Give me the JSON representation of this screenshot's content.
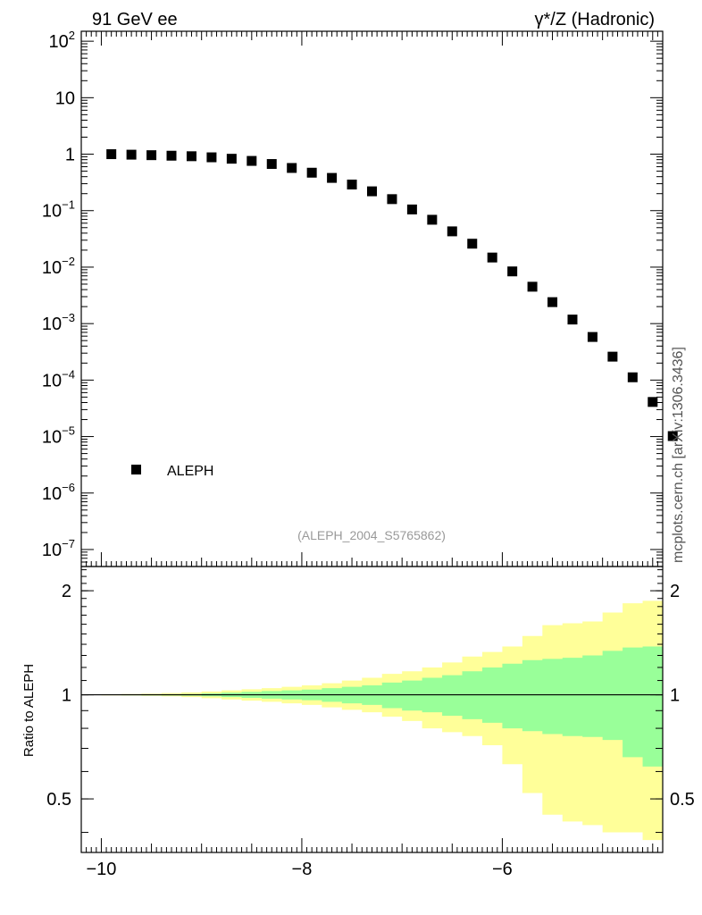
{
  "header": {
    "left_title": "91 GeV ee",
    "right_title": "γ*/Z (Hadronic)",
    "side_label": "mcplots.cern.ch [arXiv:1306.3436]",
    "analysis_id": "(ALEPH_2004_S5765862)"
  },
  "colors": {
    "data_marker": "#000000",
    "band_inner": "#99ff99",
    "band_outer": "#ffff99"
  },
  "chart_data": [
    {
      "type": "scatter",
      "panel": "main",
      "yscale": "log",
      "xlim": [
        -10.2,
        -4.4
      ],
      "ylim": [
        5e-08,
        150
      ],
      "y_ticks": [
        {
          "value": 100,
          "base": "10",
          "exp": "2"
        },
        {
          "value": 10,
          "base": "10",
          "exp": ""
        },
        {
          "value": 1,
          "base": "1",
          "exp": ""
        },
        {
          "value": 0.1,
          "base": "10",
          "exp": "−1"
        },
        {
          "value": 0.01,
          "base": "10",
          "exp": "−2"
        },
        {
          "value": 0.001,
          "base": "10",
          "exp": "−3"
        },
        {
          "value": 0.0001,
          "base": "10",
          "exp": "−4"
        },
        {
          "value": 1e-05,
          "base": "10",
          "exp": "−5"
        },
        {
          "value": 1e-06,
          "base": "10",
          "exp": "−6"
        },
        {
          "value": 1e-07,
          "base": "10",
          "exp": "−7"
        }
      ],
      "legend": {
        "label": "ALEPH",
        "position": "bottom-left"
      },
      "series": [
        {
          "name": "ALEPH",
          "x": [
            -9.9,
            -9.7,
            -9.5,
            -9.3,
            -9.1,
            -8.9,
            -8.7,
            -8.5,
            -8.3,
            -8.1,
            -7.9,
            -7.7,
            -7.5,
            -7.3,
            -7.1,
            -6.9,
            -6.7,
            -6.5,
            -6.3,
            -6.1,
            -5.9,
            -5.7,
            -5.5,
            -5.3,
            -5.1,
            -4.9,
            -4.7,
            -4.5,
            -4.3
          ],
          "y": [
            1.0,
            0.98,
            0.96,
            0.94,
            0.92,
            0.88,
            0.83,
            0.76,
            0.67,
            0.57,
            0.47,
            0.38,
            0.29,
            0.22,
            0.16,
            0.105,
            0.069,
            0.043,
            0.026,
            0.0148,
            0.0084,
            0.0045,
            0.0024,
            0.00118,
            0.00058,
            0.00026,
            0.000112,
            4.1e-05,
            1.02e-05
          ]
        }
      ]
    },
    {
      "type": "area",
      "panel": "ratio",
      "ylabel": "Ratio to ALEPH",
      "yscale": "log",
      "xlim": [
        -10.2,
        -4.4
      ],
      "ylim": [
        0.35,
        2.35
      ],
      "x_ticks": [
        -10,
        -8,
        -6
      ],
      "x_tick_labels": [
        "−10",
        "−8",
        "−6"
      ],
      "y_ticks": [
        0.5,
        1,
        2
      ],
      "y_tick_labels": [
        "0.5",
        "1",
        "2"
      ],
      "reference_line": 1,
      "bin_edges": [
        -10,
        -9.8,
        -9.6,
        -9.4,
        -9.2,
        -9.0,
        -8.8,
        -8.6,
        -8.4,
        -8.2,
        -8.0,
        -7.8,
        -7.6,
        -7.4,
        -7.2,
        -7.0,
        -6.8,
        -6.6,
        -6.4,
        -6.2,
        -6.0,
        -5.8,
        -5.6,
        -5.4,
        -5.2,
        -5.0,
        -4.8,
        -4.6,
        -4.4,
        -4.2
      ],
      "band_inner": {
        "lower": [
          0.998,
          0.997,
          0.996,
          0.995,
          0.994,
          0.99,
          0.985,
          0.98,
          0.975,
          0.97,
          0.965,
          0.955,
          0.945,
          0.935,
          0.915,
          0.9,
          0.89,
          0.87,
          0.85,
          0.83,
          0.8,
          0.785,
          0.77,
          0.76,
          0.755,
          0.74,
          0.66,
          0.62,
          0.35
        ],
        "upper": [
          1.002,
          1.003,
          1.004,
          1.005,
          1.006,
          1.01,
          1.015,
          1.02,
          1.025,
          1.03,
          1.035,
          1.045,
          1.055,
          1.065,
          1.085,
          1.1,
          1.12,
          1.14,
          1.17,
          1.2,
          1.23,
          1.26,
          1.27,
          1.28,
          1.3,
          1.34,
          1.37,
          1.38,
          2.35
        ]
      },
      "band_outer": {
        "lower": [
          0.996,
          0.995,
          0.993,
          0.99,
          0.985,
          0.978,
          0.97,
          0.962,
          0.955,
          0.945,
          0.935,
          0.92,
          0.905,
          0.89,
          0.865,
          0.84,
          0.8,
          0.78,
          0.76,
          0.715,
          0.63,
          0.52,
          0.45,
          0.43,
          0.42,
          0.4,
          0.4,
          0.38,
          0.35
        ],
        "upper": [
          1.004,
          1.006,
          1.008,
          1.012,
          1.016,
          1.022,
          1.03,
          1.038,
          1.045,
          1.055,
          1.065,
          1.08,
          1.1,
          1.12,
          1.15,
          1.17,
          1.2,
          1.24,
          1.29,
          1.33,
          1.38,
          1.48,
          1.59,
          1.61,
          1.63,
          1.73,
          1.84,
          1.87,
          2.35
        ]
      }
    }
  ]
}
